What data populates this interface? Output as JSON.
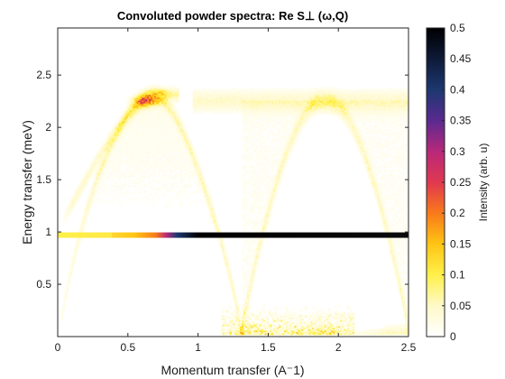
{
  "chart_data": {
    "type": "heatmap",
    "title": "Convoluted powder spectra: Re S⊥ (ω,Q)",
    "xlabel": "Momentum transfer (A⁻1)",
    "ylabel": "Energy transfer (meV)",
    "xlim": [
      0,
      2.5
    ],
    "ylim": [
      0,
      2.95
    ],
    "x_ticks": [
      "0",
      "0.5",
      "1",
      "1.5",
      "2",
      "2.5"
    ],
    "x_tick_values": [
      0,
      0.5,
      1,
      1.5,
      2,
      2.5
    ],
    "y_ticks": [
      "0.5",
      "1",
      "1.5",
      "2",
      "2.5"
    ],
    "y_tick_values": [
      0.5,
      1,
      1.5,
      2,
      2.5
    ],
    "grid": false,
    "colorbar": {
      "label": "Intensity (arb. u)",
      "range": [
        0,
        0.5
      ],
      "ticks": [
        "0",
        "0.05",
        "0.1",
        "0.15",
        "0.2",
        "0.25",
        "0.3",
        "0.35",
        "0.4",
        "0.45",
        "0.5"
      ],
      "tick_values": [
        0,
        0.05,
        0.1,
        0.15,
        0.2,
        0.25,
        0.3,
        0.35,
        0.4,
        0.45,
        0.5
      ],
      "colormap": [
        "#ffffff",
        "#fff9c8",
        "#fff04a",
        "#ffc414",
        "#f87a1a",
        "#e03850",
        "#b8287a",
        "#5a2a90",
        "#1c3870",
        "#0e1a38",
        "#000000"
      ]
    },
    "features": [
      {
        "name": "elastic line",
        "energy": 0.97,
        "q_range": [
          0,
          2.5
        ],
        "intensity_range": [
          0.05,
          0.5
        ]
      },
      {
        "name": "dispersion maximum",
        "energy": 2.28,
        "q": 0.65,
        "intensity": 0.2
      },
      {
        "name": "dispersion minimum",
        "energy": 0.05,
        "q": 1.3,
        "intensity": 0.15
      },
      {
        "name": "flat band",
        "energy": 2.25,
        "q_range": [
          1.5,
          2.5
        ],
        "intensity": 0.08
      }
    ]
  }
}
